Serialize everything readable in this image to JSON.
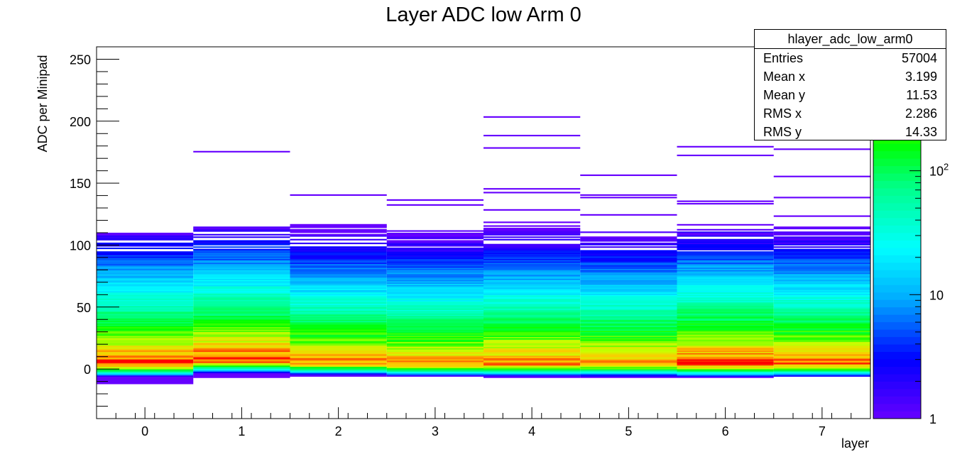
{
  "chart_data": {
    "type": "heatmap",
    "title": "Layer ADC low Arm 0",
    "xlabel": "layer",
    "ylabel": "ADC per Minipad",
    "x_categories": [
      "0",
      "1",
      "2",
      "3",
      "4",
      "5",
      "6",
      "7"
    ],
    "xlim": [
      -0.5,
      7.5
    ],
    "ylim": [
      -40,
      260
    ],
    "y_ticks": [
      0,
      50,
      100,
      150,
      200,
      250
    ],
    "z_scale": "log",
    "zlim": [
      1,
      1000
    ],
    "z_tick_labels": [
      {
        "value": 1,
        "label": "1"
      },
      {
        "value": 10,
        "label": "10"
      },
      {
        "value": 100,
        "label": "10",
        "exponent": "2"
      }
    ],
    "layers": [
      {
        "layer": 0,
        "peak_adc": 5,
        "peak_count": 900,
        "min_adc": -12,
        "core_max_adc": 112,
        "sparse_entries_adc": []
      },
      {
        "layer": 1,
        "peak_adc": 8,
        "peak_count": 1000,
        "min_adc": -7,
        "core_max_adc": 114,
        "sparse_entries_adc": [
          175
        ]
      },
      {
        "layer": 2,
        "peak_adc": 6,
        "peak_count": 700,
        "min_adc": -6,
        "core_max_adc": 116,
        "sparse_entries_adc": [
          140
        ]
      },
      {
        "layer": 3,
        "peak_adc": 5,
        "peak_count": 650,
        "min_adc": -6,
        "core_max_adc": 115,
        "sparse_entries_adc": [
          132,
          136
        ]
      },
      {
        "layer": 4,
        "peak_adc": 5,
        "peak_count": 750,
        "min_adc": -7,
        "core_max_adc": 118,
        "sparse_entries_adc": [
          128,
          142,
          145,
          178,
          188,
          203
        ]
      },
      {
        "layer": 5,
        "peak_adc": 5,
        "peak_count": 700,
        "min_adc": -7,
        "core_max_adc": 112,
        "sparse_entries_adc": [
          124,
          138,
          140,
          156
        ]
      },
      {
        "layer": 6,
        "peak_adc": 5,
        "peak_count": 1000,
        "min_adc": -7,
        "core_max_adc": 112,
        "sparse_entries_adc": [
          116,
          133,
          135,
          172,
          179
        ]
      },
      {
        "layer": 7,
        "peak_adc": 5,
        "peak_count": 800,
        "min_adc": -6,
        "core_max_adc": 114,
        "sparse_entries_adc": [
          123,
          138,
          155,
          177
        ]
      }
    ]
  },
  "stats": {
    "name": "hlayer_adc_low_arm0",
    "rows": [
      {
        "label": "Entries",
        "value": "57004"
      },
      {
        "label": "Mean x",
        "value": "3.199"
      },
      {
        "label": "Mean y",
        "value": "11.53"
      },
      {
        "label": "RMS x",
        "value": "2.286"
      },
      {
        "label": "RMS y",
        "value": "14.33"
      }
    ]
  }
}
